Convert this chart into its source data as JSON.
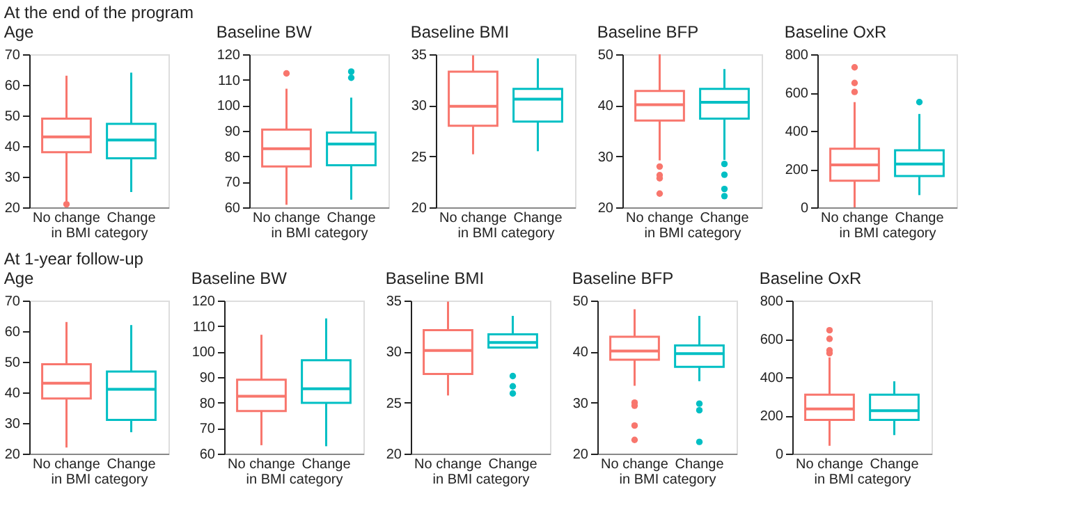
{
  "chart_data": [
    {
      "type": "box",
      "title": "Age",
      "annotations": [
        "At the end of the program"
      ],
      "xlabel": "in BMI category",
      "categories": [
        "No change",
        "Change"
      ],
      "colors": [
        "#f8766d",
        "#00bfc4"
      ],
      "ylim": [
        20,
        70
      ],
      "yticks": [
        20,
        30,
        40,
        50,
        60,
        70
      ],
      "grid": false,
      "legend": false,
      "boxes": [
        {
          "low": 22,
          "q1": 38,
          "median": 43,
          "q3": 49,
          "high": 63,
          "outliers": [
            21
          ]
        },
        {
          "low": 25,
          "q1": 36,
          "median": 42,
          "q3": 47.3,
          "high": 64
        }
      ]
    },
    {
      "type": "box",
      "title": "Baseline BW",
      "xlabel": "in BMI category",
      "categories": [
        "No change",
        "Change"
      ],
      "colors": [
        "#f8766d",
        "#00bfc4"
      ],
      "ylim": [
        60,
        120
      ],
      "yticks": [
        60,
        70,
        80,
        90,
        100,
        110,
        120
      ],
      "grid": false,
      "legend": false,
      "boxes": [
        {
          "low": 61,
          "q1": 76,
          "median": 83,
          "q3": 90.5,
          "high": 106.5,
          "outliers": [
            112.5
          ]
        },
        {
          "low": 63,
          "q1": 76.5,
          "median": 84.8,
          "q3": 89.3,
          "high": 103,
          "outliers": [
            110.8,
            113.2
          ]
        }
      ]
    },
    {
      "type": "box",
      "title": "Baseline BMI",
      "xlabel": "in BMI category",
      "categories": [
        "No change",
        "Change"
      ],
      "colors": [
        "#f8766d",
        "#00bfc4"
      ],
      "ylim": [
        20,
        35
      ],
      "yticks": [
        20,
        25,
        30,
        35
      ],
      "grid": false,
      "legend": false,
      "boxes": [
        {
          "low": 25.2,
          "q1": 28,
          "median": 29.9,
          "q3": 33.3,
          "high": 34.9
        },
        {
          "low": 25.5,
          "q1": 28.4,
          "median": 30.6,
          "q3": 31.6,
          "high": 34.6
        }
      ]
    },
    {
      "type": "box",
      "title": "Baseline BFP",
      "xlabel": "in BMI category",
      "categories": [
        "No change",
        "Change"
      ],
      "colors": [
        "#f8766d",
        "#00bfc4"
      ],
      "ylim": [
        20,
        50
      ],
      "yticks": [
        20,
        30,
        40,
        50
      ],
      "grid": false,
      "legend": false,
      "boxes": [
        {
          "low": 29.2,
          "q1": 37,
          "median": 40.1,
          "q3": 42.8,
          "high": 50,
          "outliers": [
            28,
            26.3,
            25.7,
            22.7
          ]
        },
        {
          "low": 29.3,
          "q1": 37.4,
          "median": 40.6,
          "q3": 43.2,
          "high": 47.1,
          "outliers": [
            28.5,
            26.4,
            23.6,
            22.2
          ]
        }
      ]
    },
    {
      "type": "box",
      "title": "Baseline OxR",
      "xlabel": "in BMI category",
      "categories": [
        "No change",
        "Change"
      ],
      "colors": [
        "#f8766d",
        "#00bfc4"
      ],
      "ylim": [
        0,
        800
      ],
      "yticks": [
        0,
        200,
        400,
        600,
        800
      ],
      "grid": false,
      "legend": false,
      "boxes": [
        {
          "low": 0,
          "q1": 139,
          "median": 222,
          "q3": 306,
          "high": 550,
          "outliers": [
            603,
            650,
            732
          ]
        },
        {
          "low": 64,
          "q1": 164,
          "median": 226,
          "q3": 298,
          "high": 488,
          "outliers": [
            550
          ]
        }
      ]
    },
    {
      "type": "box",
      "title": "Age",
      "annotations": [
        "At 1-year follow-up"
      ],
      "xlabel": "in BMI category",
      "categories": [
        "No change",
        "Change"
      ],
      "colors": [
        "#f8766d",
        "#00bfc4"
      ],
      "ylim": [
        20,
        70
      ],
      "yticks": [
        20,
        30,
        40,
        50,
        60,
        70
      ],
      "grid": false,
      "legend": false,
      "boxes": [
        {
          "low": 22,
          "q1": 38,
          "median": 43,
          "q3": 49.2,
          "high": 63
        },
        {
          "low": 27,
          "q1": 31,
          "median": 41,
          "q3": 46.8,
          "high": 62
        }
      ]
    },
    {
      "type": "box",
      "title": "Baseline BW",
      "xlabel": "in BMI category",
      "categories": [
        "No change",
        "Change"
      ],
      "colors": [
        "#f8766d",
        "#00bfc4"
      ],
      "ylim": [
        60,
        120
      ],
      "yticks": [
        60,
        70,
        80,
        90,
        100,
        110,
        120
      ],
      "grid": false,
      "legend": false,
      "boxes": [
        {
          "low": 63.3,
          "q1": 76.7,
          "median": 82.5,
          "q3": 89,
          "high": 106.6
        },
        {
          "low": 62.9,
          "q1": 79.9,
          "median": 85.4,
          "q3": 96.6,
          "high": 113
        }
      ]
    },
    {
      "type": "box",
      "title": "Baseline BMI",
      "xlabel": "in BMI category",
      "categories": [
        "No change",
        "Change"
      ],
      "colors": [
        "#f8766d",
        "#00bfc4"
      ],
      "ylim": [
        20,
        35
      ],
      "yticks": [
        20,
        25,
        30,
        35
      ],
      "grid": false,
      "legend": false,
      "boxes": [
        {
          "low": 25.7,
          "q1": 27.8,
          "median": 30.1,
          "q3": 32.1,
          "high": 34.9
        },
        {
          "low": 30.4,
          "q1": 30.4,
          "median": 30.9,
          "q3": 31.7,
          "high": 33.5,
          "outliers": [
            27.6,
            26.6,
            25.9
          ]
        }
      ]
    },
    {
      "type": "box",
      "title": "Baseline BFP",
      "xlabel": "in BMI category",
      "categories": [
        "No change",
        "Change"
      ],
      "colors": [
        "#f8766d",
        "#00bfc4"
      ],
      "ylim": [
        20,
        50
      ],
      "yticks": [
        20,
        30,
        40,
        50
      ],
      "grid": false,
      "legend": false,
      "boxes": [
        {
          "low": 33.3,
          "q1": 38.4,
          "median": 40.1,
          "q3": 42.9,
          "high": 48.3,
          "outliers": [
            30,
            29.4,
            25.5,
            22.7
          ]
        },
        {
          "low": 34.2,
          "q1": 37,
          "median": 39.6,
          "q3": 41.2,
          "high": 47,
          "outliers": [
            29.8,
            28.5,
            22.3
          ]
        }
      ]
    },
    {
      "type": "box",
      "title": "Baseline OxR",
      "xlabel": "in BMI category",
      "categories": [
        "No change",
        "Change"
      ],
      "colors": [
        "#f8766d",
        "#00bfc4"
      ],
      "ylim": [
        0,
        800
      ],
      "yticks": [
        0,
        200,
        400,
        600,
        800
      ],
      "grid": false,
      "legend": false,
      "boxes": [
        {
          "low": 41,
          "q1": 176,
          "median": 234,
          "q3": 308,
          "high": 503,
          "outliers": [
            525,
            540,
            600,
            645
          ]
        },
        {
          "low": 97,
          "q1": 176,
          "median": 225,
          "q3": 308,
          "high": 378
        }
      ]
    }
  ]
}
